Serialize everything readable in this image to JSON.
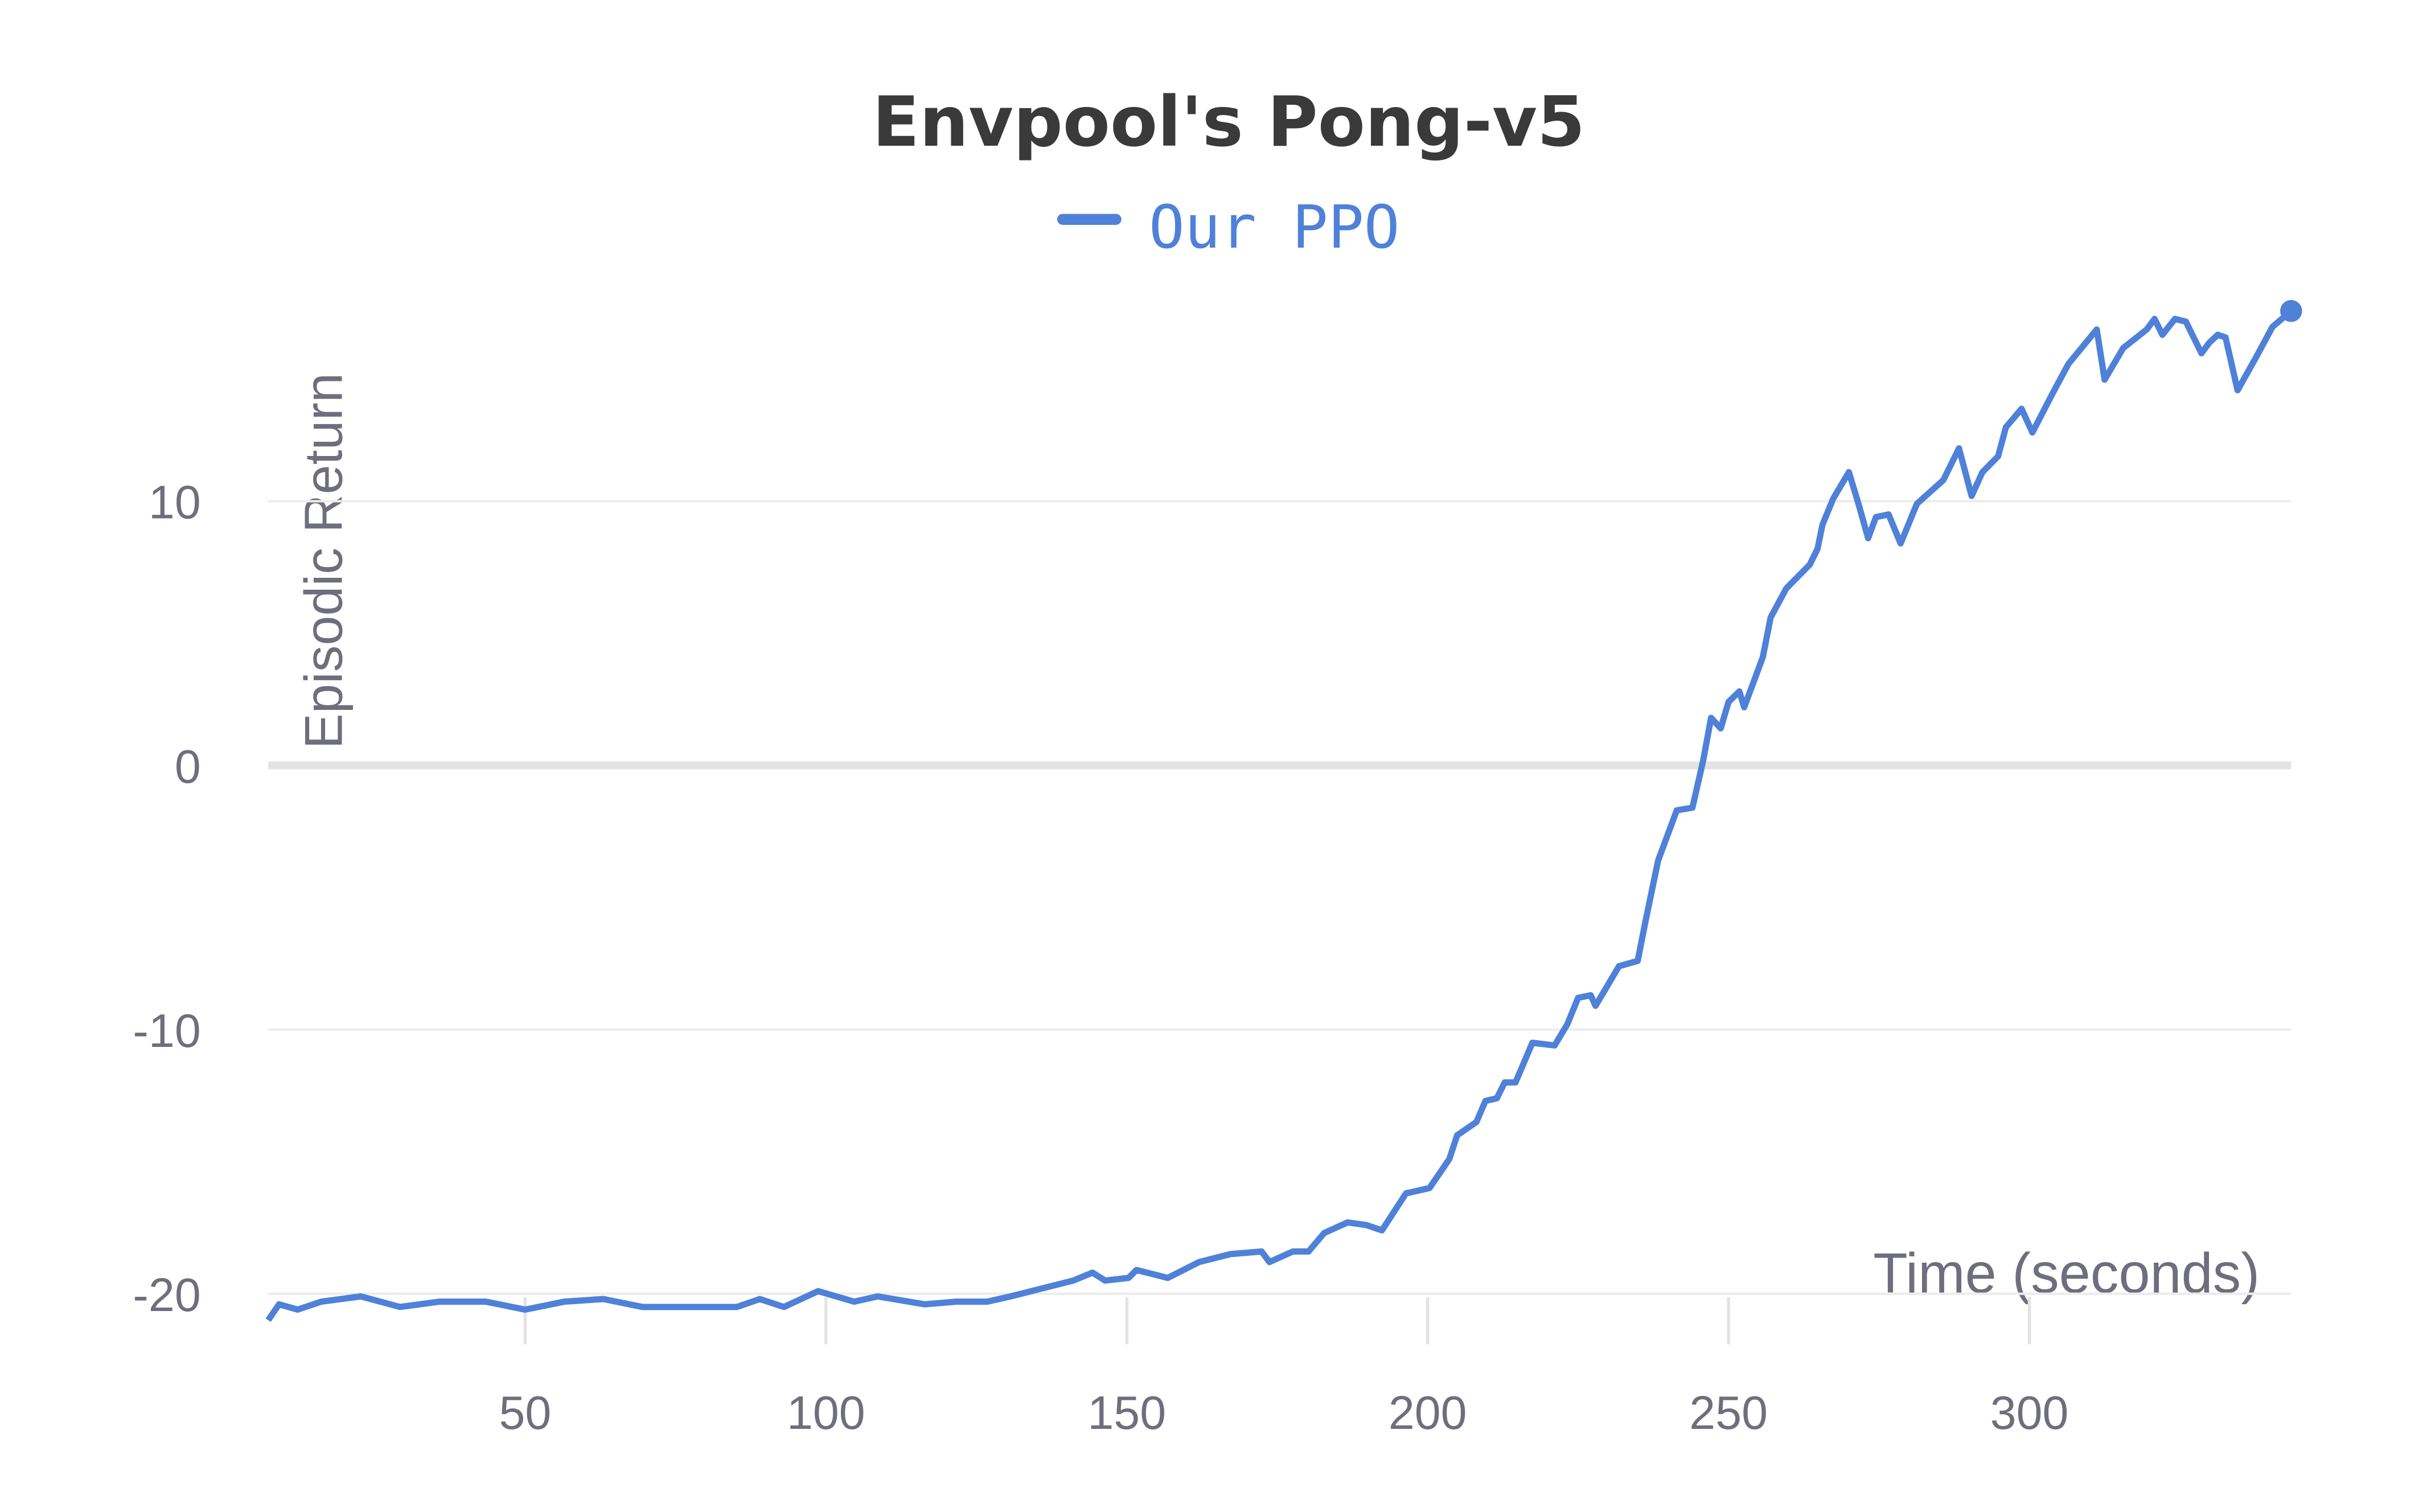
{
  "chart_data": {
    "type": "line",
    "title": "Envpool's Pong-v5",
    "x_label": "Time (seconds)",
    "y_label": "Episodic Return",
    "xlim": [
      7.3,
      343.5
    ],
    "ylim": [
      -21.5,
      18
    ],
    "xticks": [
      50,
      100,
      150,
      200,
      250,
      300
    ],
    "yticks": [
      -20,
      -10,
      0,
      10
    ],
    "grid": true,
    "legend": "top",
    "series": [
      {
        "name": "Our PPO",
        "color": "#4f81d9",
        "x": [
          7.3,
          9.1,
          12.2,
          16.1,
          22.7,
          29.2,
          35.7,
          43.5,
          50,
          56.5,
          63,
          69.5,
          77.3,
          85.2,
          89,
          93,
          98.7,
          104.7,
          108.6,
          116.4,
          121.6,
          126.8,
          130.7,
          135.9,
          141.1,
          144.3,
          146.4,
          150.3,
          151.6,
          156.8,
          162,
          167.2,
          172.4,
          173.7,
          177.6,
          180.2,
          182.8,
          186.7,
          189.8,
          192.4,
          196.4,
          200.3,
          203.6,
          204.9,
          208.1,
          209.6,
          211.5,
          212.8,
          214.6,
          217.4,
          221.1,
          223.2,
          225,
          227.1,
          227.9,
          231.8,
          234.9,
          236.2,
          238.3,
          241.4,
          244,
          245.8,
          247.1,
          248.7,
          250,
          251.8,
          252.6,
          255.7,
          257,
          259.6,
          263.5,
          264.8,
          265.6,
          267.4,
          270,
          271.6,
          273.2,
          274.5,
          276.6,
          278.6,
          281.3,
          285.7,
          288.3,
          290.4,
          292.2,
          294.8,
          296.1,
          298.7,
          300.5,
          303.9,
          306.5,
          311.2,
          312.5,
          315.6,
          319.5,
          320.8,
          322.1,
          324.2,
          326,
          328.6,
          329.9,
          331.3,
          332.6,
          334.6,
          337.8,
          340.4,
          343.5
        ],
        "values": [
          -21.0,
          -20.4,
          -20.6,
          -20.3,
          -20.1,
          -20.5,
          -20.3,
          -20.3,
          -20.6,
          -20.3,
          -20.2,
          -20.5,
          -20.5,
          -20.5,
          -20.2,
          -20.5,
          -19.9,
          -20.3,
          -20.1,
          -20.4,
          -20.3,
          -20.3,
          -20.1,
          -19.8,
          -19.5,
          -19.2,
          -19.5,
          -19.4,
          -19.1,
          -19.4,
          -18.8,
          -18.5,
          -18.4,
          -18.8,
          -18.4,
          -18.4,
          -17.7,
          -17.3,
          -17.4,
          -17.6,
          -16.2,
          -16.0,
          -14.9,
          -14.0,
          -13.5,
          -12.7,
          -12.6,
          -12.0,
          -12.0,
          -10.5,
          -10.6,
          -9.8,
          -8.8,
          -8.7,
          -9.1,
          -7.6,
          -7.4,
          -5.9,
          -3.6,
          -1.7,
          -1.6,
          0.2,
          1.8,
          1.4,
          2.4,
          2.8,
          2.2,
          4.1,
          5.6,
          6.7,
          7.6,
          8.2,
          9.1,
          10.1,
          11.1,
          9.9,
          8.6,
          9.4,
          9.5,
          8.4,
          9.9,
          10.8,
          12.0,
          10.2,
          11.1,
          11.7,
          12.8,
          13.5,
          12.6,
          14.1,
          15.2,
          16.5,
          14.6,
          15.8,
          16.5,
          16.9,
          16.3,
          16.9,
          16.8,
          15.6,
          16.0,
          16.3,
          16.2,
          14.2,
          15.5,
          16.6,
          17.2
        ]
      }
    ]
  }
}
